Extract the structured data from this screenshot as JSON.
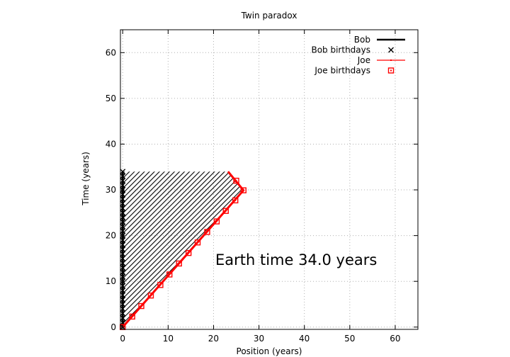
{
  "chart_data": {
    "type": "line",
    "title": "Twin paradox",
    "xlabel": "Position (years)",
    "ylabel": "Time (years)",
    "xlim": [
      -0.5,
      65
    ],
    "ylim": [
      -0.5,
      65
    ],
    "x_ticks": [
      0,
      10,
      20,
      30,
      40,
      50,
      60
    ],
    "y_ticks": [
      0,
      10,
      20,
      30,
      40,
      50,
      60
    ],
    "grid": true,
    "legend_position": "top-right",
    "annotation": "Earth time 34.0 years",
    "series": [
      {
        "name": "Bob",
        "kind": "line",
        "color": "#000000",
        "x": [
          0,
          0
        ],
        "y": [
          0,
          34
        ]
      },
      {
        "name": "Bob birthdays",
        "kind": "points",
        "marker": "x",
        "color": "#000000",
        "x": [
          0,
          0,
          0,
          0,
          0,
          0,
          0,
          0,
          0,
          0,
          0,
          0,
          0,
          0,
          0,
          0,
          0,
          0,
          0,
          0,
          0,
          0,
          0,
          0,
          0,
          0,
          0,
          0,
          0,
          0,
          0,
          0,
          0,
          0,
          0
        ],
        "y": [
          0,
          1,
          2,
          3,
          4,
          5,
          6,
          7,
          8,
          9,
          10,
          11,
          12,
          13,
          14,
          15,
          16,
          17,
          18,
          19,
          20,
          21,
          22,
          23,
          24,
          25,
          26,
          27,
          28,
          29,
          30,
          31,
          32,
          33,
          34
        ]
      },
      {
        "name": "Joe",
        "kind": "line",
        "color": "#ff0000",
        "x": [
          0,
          26.6,
          23.2
        ],
        "y": [
          0,
          29.9,
          34
        ]
      },
      {
        "name": "Joe birthdays",
        "kind": "points",
        "marker": "square",
        "color": "#ff0000",
        "x": [
          0,
          2.1,
          4.1,
          6.2,
          8.3,
          10.3,
          12.4,
          14.5,
          16.5,
          18.6,
          20.7,
          22.7,
          24.8,
          26.6,
          25.0
        ],
        "y": [
          0,
          2.3,
          4.6,
          6.9,
          9.2,
          11.5,
          13.9,
          16.2,
          18.5,
          20.8,
          23.1,
          25.4,
          27.7,
          29.9,
          32.0
        ]
      }
    ],
    "hatched_region": {
      "fill": "diagonal-hatch",
      "color": "#000000",
      "x": [
        0,
        0,
        23.2,
        26.6
      ],
      "y": [
        0,
        34,
        34,
        29.9
      ]
    }
  }
}
